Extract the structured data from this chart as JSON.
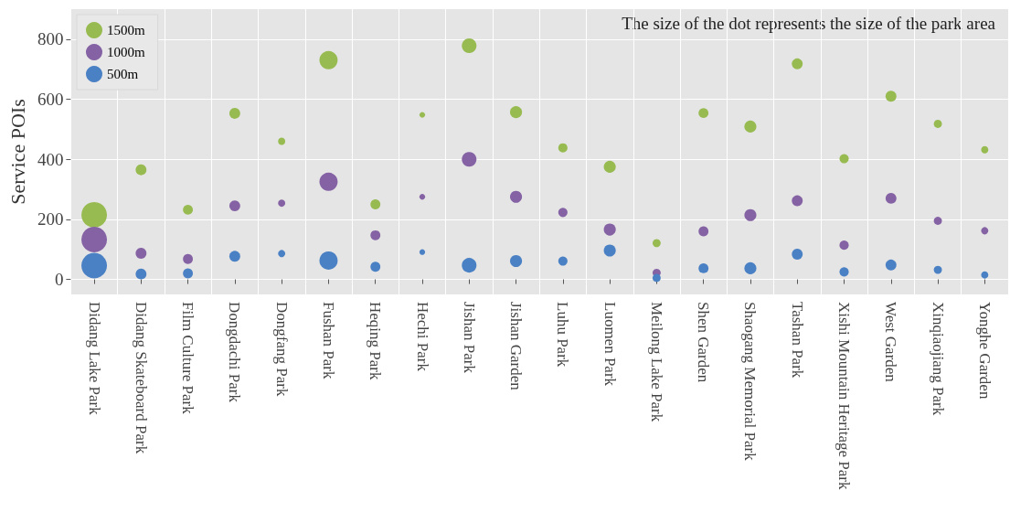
{
  "chart_data": {
    "type": "bubble",
    "ylabel": "Service POIs",
    "annotations": [
      "The size of the dot represents the size of the park area"
    ],
    "categories": [
      "Didang Lake Park",
      "Didang Skateboard Park",
      "Film Culture Park",
      "Dongdachi Park",
      "Dongfang Park",
      "Fushan Park",
      "Heqing Park",
      "Hechi Park",
      "Jishan Park",
      "Jishan Garden",
      "Luhu Park",
      "Luomen Park",
      "Meilong Lake Park",
      "Shen Garden",
      "Shaogang Memorial Park",
      "Tashan Park",
      "Xishi Mountain Heritage Park",
      "West Garden",
      "Xinqiaojiang Park",
      "Yonghe Garden"
    ],
    "series": [
      {
        "name": "1500m",
        "color": "#97bb50",
        "values": [
          215,
          365,
          232,
          553,
          460,
          730,
          250,
          548,
          778,
          557,
          438,
          375,
          121,
          554,
          509,
          718,
          402,
          610,
          518,
          432
        ],
        "sizes": [
          1,
          0.18,
          0.15,
          0.18,
          0.08,
          0.51,
          0.15,
          0.05,
          0.33,
          0.22,
          0.13,
          0.22,
          0.1,
          0.15,
          0.22,
          0.18,
          0.13,
          0.18,
          0.1,
          0.08
        ]
      },
      {
        "name": "1000m",
        "color": "#8462a4",
        "values": [
          133,
          87,
          68,
          245,
          254,
          325,
          147,
          275,
          400,
          275,
          223,
          166,
          22,
          160,
          214,
          262,
          114,
          270,
          195,
          162
        ],
        "sizes": [
          1,
          0.18,
          0.15,
          0.18,
          0.08,
          0.51,
          0.15,
          0.05,
          0.33,
          0.22,
          0.13,
          0.22,
          0.1,
          0.15,
          0.22,
          0.18,
          0.13,
          0.18,
          0.1,
          0.08
        ]
      },
      {
        "name": "500m",
        "color": "#4a80c4",
        "values": [
          46,
          18,
          20,
          77,
          86,
          63,
          42,
          91,
          47,
          61,
          61,
          96,
          5,
          37,
          37,
          84,
          25,
          48,
          32,
          15
        ],
        "sizes": [
          1,
          0.18,
          0.15,
          0.18,
          0.08,
          0.51,
          0.15,
          0.05,
          0.33,
          0.22,
          0.13,
          0.22,
          0.1,
          0.15,
          0.22,
          0.18,
          0.13,
          0.18,
          0.1,
          0.08
        ]
      }
    ],
    "ylim": [
      -50,
      900
    ],
    "yticks": [
      0,
      200,
      400,
      600,
      800
    ],
    "grid": true,
    "legend": "top left"
  }
}
